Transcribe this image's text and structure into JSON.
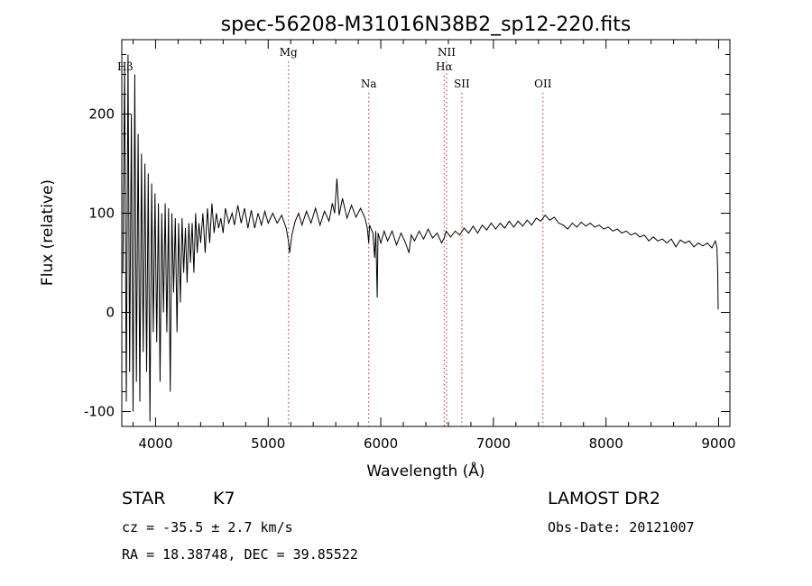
{
  "chart_data": {
    "type": "line",
    "title": "spec-56208-M31016N38B2_sp12-220.fits",
    "xlabel": "Wavelength (Å)",
    "ylabel": "Flux (relative)",
    "xlim": [
      3700,
      9100
    ],
    "ylim": [
      -115,
      275
    ],
    "x_ticks": [
      4000,
      5000,
      6000,
      7000,
      8000,
      9000
    ],
    "y_ticks": [
      -100,
      0,
      100,
      200
    ],
    "grid": false,
    "series": [
      {
        "color": "#000000",
        "points": [
          [
            3710,
            40
          ],
          [
            3725,
            250
          ],
          [
            3740,
            -90
          ],
          [
            3755,
            260
          ],
          [
            3770,
            -60
          ],
          [
            3785,
            200
          ],
          [
            3800,
            -100
          ],
          [
            3815,
            240
          ],
          [
            3830,
            -70
          ],
          [
            3845,
            180
          ],
          [
            3860,
            -90
          ],
          [
            3875,
            160
          ],
          [
            3890,
            -40
          ],
          [
            3905,
            150
          ],
          [
            3920,
            -60
          ],
          [
            3935,
            140
          ],
          [
            3950,
            -110
          ],
          [
            3965,
            130
          ],
          [
            3980,
            -20
          ],
          [
            3995,
            120
          ],
          [
            4010,
            -30
          ],
          [
            4025,
            110
          ],
          [
            4040,
            -70
          ],
          [
            4055,
            100
          ],
          [
            4070,
            0
          ],
          [
            4085,
            110
          ],
          [
            4100,
            -20
          ],
          [
            4115,
            105
          ],
          [
            4130,
            -80
          ],
          [
            4145,
            100
          ],
          [
            4160,
            20
          ],
          [
            4175,
            95
          ],
          [
            4190,
            -20
          ],
          [
            4205,
            90
          ],
          [
            4220,
            10
          ],
          [
            4235,
            95
          ],
          [
            4250,
            40
          ],
          [
            4265,
            85
          ],
          [
            4280,
            30
          ],
          [
            4295,
            90
          ],
          [
            4310,
            50
          ],
          [
            4325,
            90
          ],
          [
            4340,
            40
          ],
          [
            4355,
            100
          ],
          [
            4370,
            60
          ],
          [
            4385,
            90
          ],
          [
            4400,
            70
          ],
          [
            4420,
            100
          ],
          [
            4440,
            60
          ],
          [
            4460,
            105
          ],
          [
            4480,
            70
          ],
          [
            4500,
            110
          ],
          [
            4520,
            80
          ],
          [
            4540,
            100
          ],
          [
            4560,
            85
          ],
          [
            4580,
            95
          ],
          [
            4600,
            80
          ],
          [
            4620,
            105
          ],
          [
            4650,
            90
          ],
          [
            4680,
            100
          ],
          [
            4700,
            88
          ],
          [
            4730,
            108
          ],
          [
            4760,
            90
          ],
          [
            4790,
            105
          ],
          [
            4820,
            85
          ],
          [
            4850,
            103
          ],
          [
            4880,
            85
          ],
          [
            4910,
            100
          ],
          [
            4940,
            88
          ],
          [
            4970,
            102
          ],
          [
            5000,
            90
          ],
          [
            5040,
            100
          ],
          [
            5080,
            90
          ],
          [
            5120,
            98
          ],
          [
            5160,
            85
          ],
          [
            5180,
            72
          ],
          [
            5190,
            60
          ],
          [
            5210,
            78
          ],
          [
            5240,
            92
          ],
          [
            5270,
            100
          ],
          [
            5300,
            88
          ],
          [
            5340,
            102
          ],
          [
            5380,
            90
          ],
          [
            5420,
            105
          ],
          [
            5460,
            88
          ],
          [
            5500,
            102
          ],
          [
            5540,
            92
          ],
          [
            5570,
            110
          ],
          [
            5590,
            100
          ],
          [
            5610,
            135
          ],
          [
            5630,
            98
          ],
          [
            5660,
            115
          ],
          [
            5700,
            95
          ],
          [
            5740,
            108
          ],
          [
            5780,
            96
          ],
          [
            5820,
            105
          ],
          [
            5860,
            95
          ],
          [
            5880,
            85
          ],
          [
            5893,
            70
          ],
          [
            5900,
            88
          ],
          [
            5930,
            80
          ],
          [
            5945,
            55
          ],
          [
            5955,
            82
          ],
          [
            5968,
            15
          ],
          [
            5975,
            80
          ],
          [
            6000,
            70
          ],
          [
            6030,
            82
          ],
          [
            6060,
            72
          ],
          [
            6100,
            82
          ],
          [
            6140,
            68
          ],
          [
            6180,
            80
          ],
          [
            6220,
            70
          ],
          [
            6250,
            60
          ],
          [
            6270,
            78
          ],
          [
            6300,
            72
          ],
          [
            6340,
            82
          ],
          [
            6380,
            74
          ],
          [
            6420,
            84
          ],
          [
            6460,
            75
          ],
          [
            6500,
            80
          ],
          [
            6540,
            70
          ],
          [
            6563,
            75
          ],
          [
            6580,
            82
          ],
          [
            6620,
            76
          ],
          [
            6660,
            82
          ],
          [
            6700,
            78
          ],
          [
            6740,
            85
          ],
          [
            6780,
            80
          ],
          [
            6820,
            87
          ],
          [
            6860,
            80
          ],
          [
            6900,
            88
          ],
          [
            6940,
            83
          ],
          [
            6980,
            90
          ],
          [
            7020,
            84
          ],
          [
            7060,
            90
          ],
          [
            7100,
            85
          ],
          [
            7140,
            92
          ],
          [
            7180,
            86
          ],
          [
            7220,
            92
          ],
          [
            7260,
            87
          ],
          [
            7300,
            93
          ],
          [
            7340,
            88
          ],
          [
            7380,
            95
          ],
          [
            7420,
            92
          ],
          [
            7460,
            98
          ],
          [
            7500,
            93
          ],
          [
            7540,
            96
          ],
          [
            7580,
            90
          ],
          [
            7620,
            88
          ],
          [
            7660,
            84
          ],
          [
            7700,
            90
          ],
          [
            7740,
            86
          ],
          [
            7780,
            91
          ],
          [
            7820,
            87
          ],
          [
            7860,
            90
          ],
          [
            7900,
            86
          ],
          [
            7940,
            88
          ],
          [
            7980,
            84
          ],
          [
            8020,
            86
          ],
          [
            8060,
            82
          ],
          [
            8100,
            84
          ],
          [
            8140,
            80
          ],
          [
            8180,
            82
          ],
          [
            8220,
            78
          ],
          [
            8260,
            80
          ],
          [
            8300,
            76
          ],
          [
            8340,
            78
          ],
          [
            8380,
            72
          ],
          [
            8420,
            76
          ],
          [
            8460,
            72
          ],
          [
            8500,
            74
          ],
          [
            8540,
            70
          ],
          [
            8580,
            74
          ],
          [
            8620,
            66
          ],
          [
            8660,
            73
          ],
          [
            8700,
            70
          ],
          [
            8740,
            72
          ],
          [
            8780,
            66
          ],
          [
            8820,
            70
          ],
          [
            8860,
            67
          ],
          [
            8900,
            70
          ],
          [
            8940,
            65
          ],
          [
            8970,
            72
          ],
          [
            8985,
            66
          ],
          [
            8992,
            40
          ],
          [
            8996,
            3
          ]
        ]
      }
    ],
    "annotations": [
      {
        "label": "Hβ",
        "x": 3730,
        "row": 1
      },
      {
        "label": "Mg",
        "x": 5180,
        "row": 0
      },
      {
        "label": "Na",
        "x": 5893,
        "row": 2
      },
      {
        "label": "NII",
        "x": 6584,
        "row": 0
      },
      {
        "label": "Hα",
        "x": 6563,
        "row": 1
      },
      {
        "label": "SII",
        "x": 6720,
        "row": 2
      },
      {
        "label": "OII",
        "x": 7440,
        "row": 2
      }
    ],
    "line_color": "#d02020"
  },
  "info": {
    "class": "STAR",
    "subclass": "K7",
    "survey": "LAMOST DR2",
    "cz": "cz = -35.5 ± 2.7 km/s",
    "obs_date": "Obs-Date: 20121007",
    "coords": "RA =  18.38748, DEC =  39.85522"
  }
}
